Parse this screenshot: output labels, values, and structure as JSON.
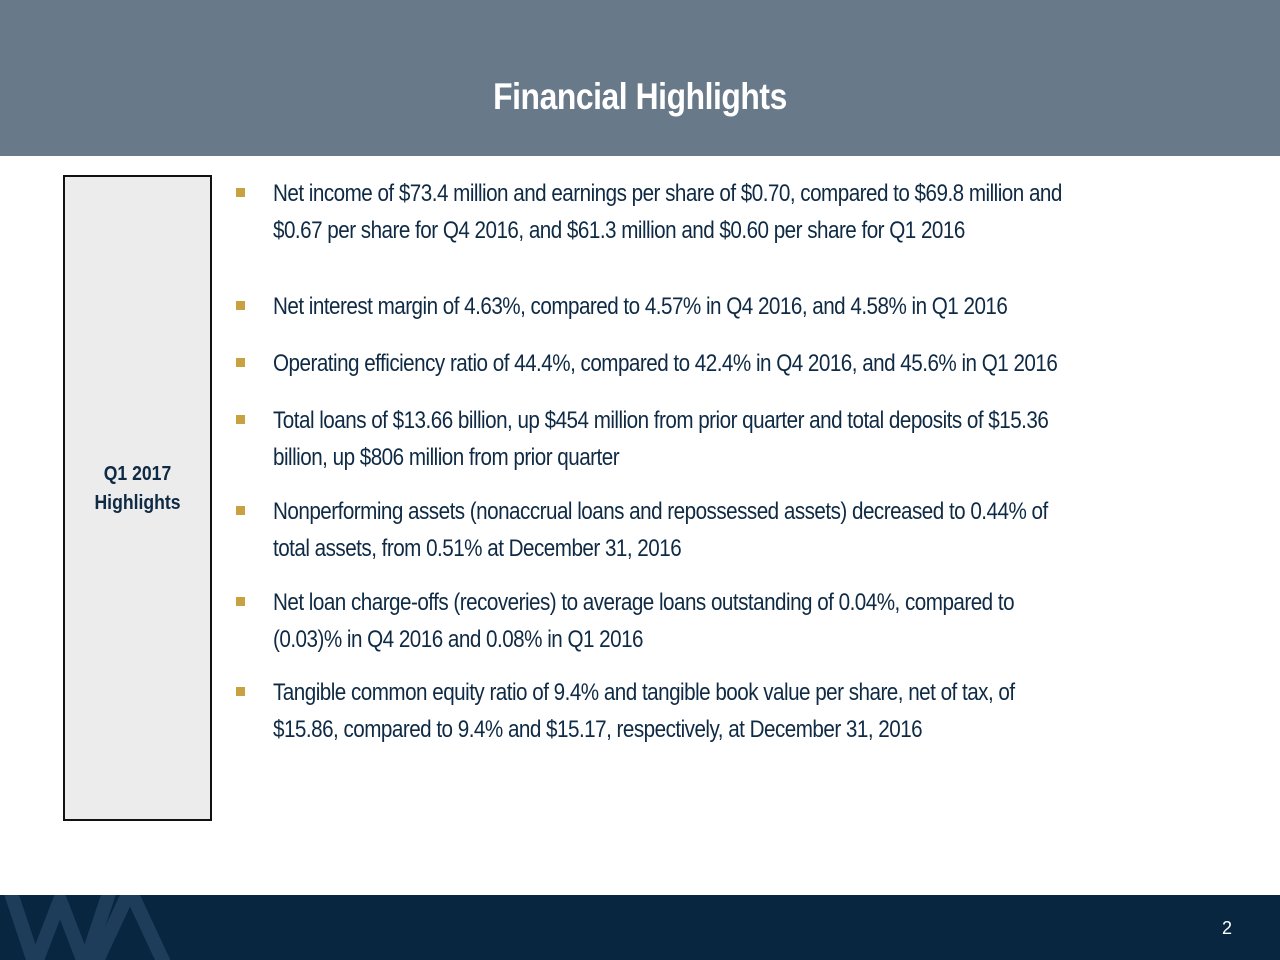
{
  "header": {
    "title": "Financial Highlights"
  },
  "sidebar": {
    "line1": "Q1 2017",
    "line2": "Highlights"
  },
  "bullets": [
    {
      "line1": "Net income of $73.4 million and earnings per share of $0.70, compared to $69.8 million and",
      "line2": "$0.67 per share for Q4 2016, and $61.3 million and $0.60 per share for Q1 2016"
    },
    {
      "line1": "Net interest margin of 4.63%, compared to 4.57% in Q4 2016, and 4.58% in Q1 2016",
      "line2": ""
    },
    {
      "line1": "Operating efficiency ratio of 44.4%, compared to 42.4% in Q4 2016, and 45.6% in Q1 2016",
      "line2": ""
    },
    {
      "line1": "Total loans of $13.66 billion, up $454 million from prior quarter and total deposits of $15.36",
      "line2": "billion, up $806 million from prior quarter"
    },
    {
      "line1": "Nonperforming assets (nonaccrual loans and repossessed assets) decreased to 0.44% of",
      "line2": "total assets, from 0.51% at December 31, 2016"
    },
    {
      "line1": "Net loan charge-offs (recoveries) to average loans outstanding of 0.04%, compared to",
      "line2": "(0.03)% in Q4 2016 and 0.08% in Q1 2016"
    },
    {
      "line1": "Tangible common equity ratio of 9.4% and tangible book value per share, net of tax, of",
      "line2": "$15.86, compared to 9.4% and $15.17, respectively, at December 31, 2016"
    }
  ],
  "footer": {
    "page_number": "2",
    "logo_icon": "wa-monogram-icon"
  },
  "colors": {
    "header_bg": "#687a8a",
    "footer_bg": "#08263f",
    "text": "#0f2a44",
    "bullet_marker": "#c8a240",
    "sidebox_bg": "#ececec"
  }
}
